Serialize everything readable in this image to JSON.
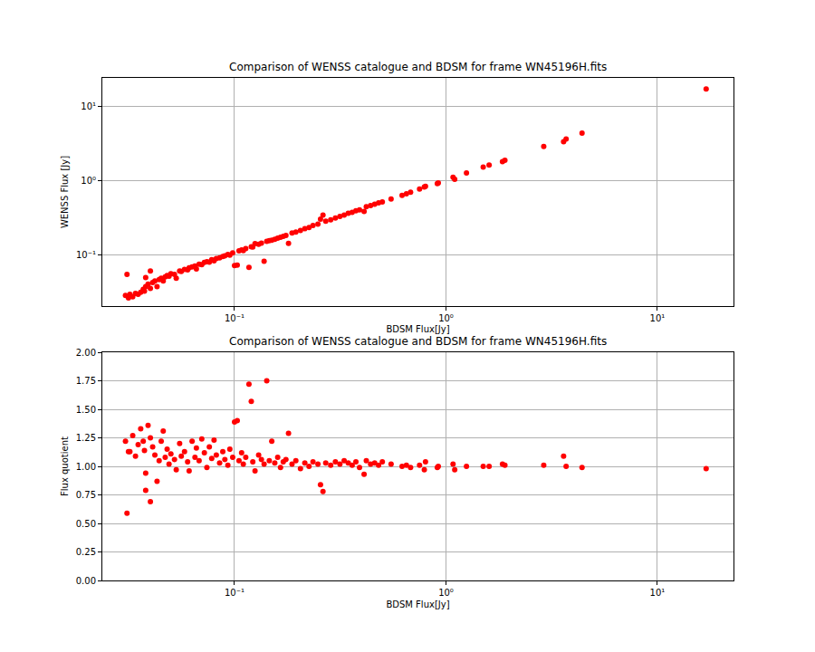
{
  "chart_data": [
    {
      "type": "scatter",
      "title": "Comparison of WENSS catalogue and BDSM for frame WN45196H.fits",
      "x_label": "BDSM Flux[Jy]",
      "y_label": "WENSS Flux [Jy]",
      "log": true,
      "grid": true,
      "color": "red",
      "marker": "circle",
      "xlim": [
        0.0237,
        22.9
      ],
      "ylim": [
        0.0202,
        23.9
      ],
      "xticks": [
        {
          "value": 0.1,
          "label": "10⁻¹"
        },
        {
          "value": 1,
          "label": "10⁰"
        },
        {
          "value": 10,
          "label": "10¹"
        }
      ],
      "yticks": [
        {
          "value": 0.1,
          "label": "10⁻¹"
        },
        {
          "value": 1,
          "label": "10⁰"
        },
        {
          "value": 10,
          "label": "10¹"
        }
      ],
      "x": [
        0.0305,
        0.031,
        0.0315,
        0.032,
        0.033,
        0.034,
        0.035,
        0.036,
        0.037,
        0.0375,
        0.038,
        0.038,
        0.039,
        0.04,
        0.04,
        0.041,
        0.042,
        0.043,
        0.044,
        0.045,
        0.046,
        0.047,
        0.048,
        0.049,
        0.05,
        0.052,
        0.053,
        0.055,
        0.056,
        0.058,
        0.06,
        0.061,
        0.063,
        0.065,
        0.066,
        0.068,
        0.07,
        0.072,
        0.074,
        0.076,
        0.078,
        0.08,
        0.082,
        0.085,
        0.088,
        0.09,
        0.093,
        0.095,
        0.098,
        0.1,
        0.103,
        0.105,
        0.108,
        0.11,
        0.113,
        0.117,
        0.12,
        0.122,
        0.125,
        0.13,
        0.134,
        0.138,
        0.142,
        0.146,
        0.15,
        0.155,
        0.16,
        0.165,
        0.17,
        0.175,
        0.18,
        0.187,
        0.195,
        0.205,
        0.215,
        0.225,
        0.235,
        0.248,
        0.255,
        0.262,
        0.27,
        0.285,
        0.3,
        0.315,
        0.33,
        0.345,
        0.36,
        0.375,
        0.39,
        0.41,
        0.42,
        0.44,
        0.46,
        0.48,
        0.5,
        0.55,
        0.62,
        0.65,
        0.68,
        0.75,
        0.79,
        0.8,
        0.91,
        0.92,
        1.08,
        1.1,
        1.25,
        1.5,
        1.6,
        1.85,
        1.9,
        2.9,
        3.6,
        3.7,
        4.4,
        17.0
      ],
      "values": [
        0.028,
        0.054,
        0.026,
        0.029,
        0.027,
        0.03,
        0.029,
        0.031,
        0.034,
        0.032,
        0.037,
        0.049,
        0.04,
        0.035,
        0.06,
        0.042,
        0.044,
        0.037,
        0.046,
        0.048,
        0.044,
        0.05,
        0.052,
        0.051,
        0.055,
        0.054,
        0.048,
        0.06,
        0.059,
        0.063,
        0.062,
        0.066,
        0.068,
        0.07,
        0.064,
        0.074,
        0.073,
        0.078,
        0.08,
        0.079,
        0.085,
        0.082,
        0.088,
        0.09,
        0.094,
        0.096,
        0.1,
        0.098,
        0.105,
        0.071,
        0.072,
        0.112,
        0.115,
        0.113,
        0.12,
        0.067,
        0.127,
        0.126,
        0.14,
        0.137,
        0.142,
        0.081,
        0.15,
        0.153,
        0.156,
        0.16,
        0.166,
        0.17,
        0.176,
        0.18,
        0.141,
        0.195,
        0.2,
        0.21,
        0.222,
        0.23,
        0.245,
        0.256,
        0.3,
        0.34,
        0.28,
        0.293,
        0.31,
        0.325,
        0.34,
        0.358,
        0.37,
        0.388,
        0.4,
        0.38,
        0.44,
        0.455,
        0.475,
        0.495,
        0.51,
        0.56,
        0.625,
        0.655,
        0.69,
        0.76,
        0.81,
        0.83,
        0.9,
        0.92,
        1.1,
        1.03,
        1.25,
        1.5,
        1.6,
        1.78,
        1.85,
        2.85,
        3.3,
        3.6,
        4.3,
        17.0
      ]
    },
    {
      "type": "scatter",
      "title": "Comparison of WENSS catalogue and BDSM for frame WN45196H.fits",
      "x_label": "BDSM Flux[Jy]",
      "y_label": "Flux quotient",
      "log": "x",
      "grid": true,
      "color": "red",
      "marker": "circle",
      "xlim": [
        0.0237,
        22.9
      ],
      "ylim": [
        0,
        2
      ],
      "xticks": [
        {
          "value": 0.1,
          "label": "10⁻¹"
        },
        {
          "value": 1,
          "label": "10⁰"
        },
        {
          "value": 10,
          "label": "10¹"
        }
      ],
      "yticks": [
        {
          "value": 0,
          "label": "0.00"
        },
        {
          "value": 0.25,
          "label": "0.25"
        },
        {
          "value": 0.5,
          "label": "0.50"
        },
        {
          "value": 0.75,
          "label": "0.75"
        },
        {
          "value": 1,
          "label": "1.00"
        },
        {
          "value": 1.25,
          "label": "1.25"
        },
        {
          "value": 1.5,
          "label": "1.50"
        },
        {
          "value": 1.75,
          "label": "1.75"
        },
        {
          "value": 2,
          "label": "2.00"
        }
      ],
      "x": [
        0.0305,
        0.031,
        0.0315,
        0.032,
        0.033,
        0.034,
        0.035,
        0.036,
        0.037,
        0.0375,
        0.038,
        0.038,
        0.039,
        0.04,
        0.04,
        0.041,
        0.042,
        0.043,
        0.044,
        0.045,
        0.046,
        0.047,
        0.048,
        0.049,
        0.05,
        0.052,
        0.053,
        0.055,
        0.056,
        0.058,
        0.06,
        0.061,
        0.063,
        0.065,
        0.066,
        0.068,
        0.07,
        0.072,
        0.074,
        0.076,
        0.078,
        0.08,
        0.082,
        0.085,
        0.088,
        0.09,
        0.093,
        0.095,
        0.098,
        0.1,
        0.103,
        0.105,
        0.108,
        0.11,
        0.113,
        0.117,
        0.12,
        0.122,
        0.125,
        0.13,
        0.134,
        0.138,
        0.142,
        0.146,
        0.15,
        0.155,
        0.16,
        0.165,
        0.17,
        0.175,
        0.18,
        0.187,
        0.195,
        0.205,
        0.215,
        0.225,
        0.235,
        0.248,
        0.255,
        0.262,
        0.27,
        0.285,
        0.3,
        0.315,
        0.33,
        0.345,
        0.36,
        0.375,
        0.39,
        0.41,
        0.42,
        0.44,
        0.46,
        0.48,
        0.5,
        0.55,
        0.62,
        0.65,
        0.68,
        0.75,
        0.79,
        0.8,
        0.91,
        0.92,
        1.08,
        1.1,
        1.25,
        1.5,
        1.6,
        1.85,
        1.9,
        2.9,
        3.6,
        3.7,
        4.4,
        17.0
      ],
      "values": [
        1.22,
        0.59,
        1.13,
        1.13,
        1.27,
        1.09,
        1.19,
        1.33,
        1.22,
        1.14,
        0.79,
        0.94,
        1.36,
        0.69,
        1.25,
        1.17,
        1.1,
        0.87,
        1.05,
        1.22,
        1.31,
        1.08,
        1.15,
        1.02,
        1.11,
        1.06,
        0.97,
        1.2,
        1.09,
        1.13,
        1.04,
        0.96,
        1.22,
        1.08,
        1.16,
        1.05,
        1.24,
        1.12,
        0.99,
        1.17,
        1.07,
        1.23,
        1.1,
        1.03,
        1.13,
        1.06,
        1.01,
        1.15,
        1.08,
        1.39,
        1.4,
        1.05,
        1.12,
        1.02,
        1.08,
        1.72,
        1.57,
        1.04,
        0.96,
        1.1,
        1.06,
        1.02,
        1.75,
        1.05,
        1.22,
        1.03,
        1.08,
        0.99,
        1.04,
        1.06,
        1.29,
        1.02,
        1.05,
        0.98,
        1.03,
        1.0,
        1.04,
        1.02,
        0.84,
        0.78,
        1.03,
        1.01,
        1.04,
        1.02,
        1.05,
        1.03,
        1.01,
        1.04,
        0.99,
        0.93,
        1.05,
        1.02,
        1.03,
        1.01,
        1.04,
        1.02,
        1.0,
        1.01,
        0.99,
        1.01,
        0.97,
        1.04,
        0.99,
        1.0,
        1.02,
        0.97,
        1.0,
        1.0,
        1.0,
        1.02,
        1.01,
        1.01,
        1.09,
        1.0,
        0.99,
        0.98
      ]
    }
  ]
}
